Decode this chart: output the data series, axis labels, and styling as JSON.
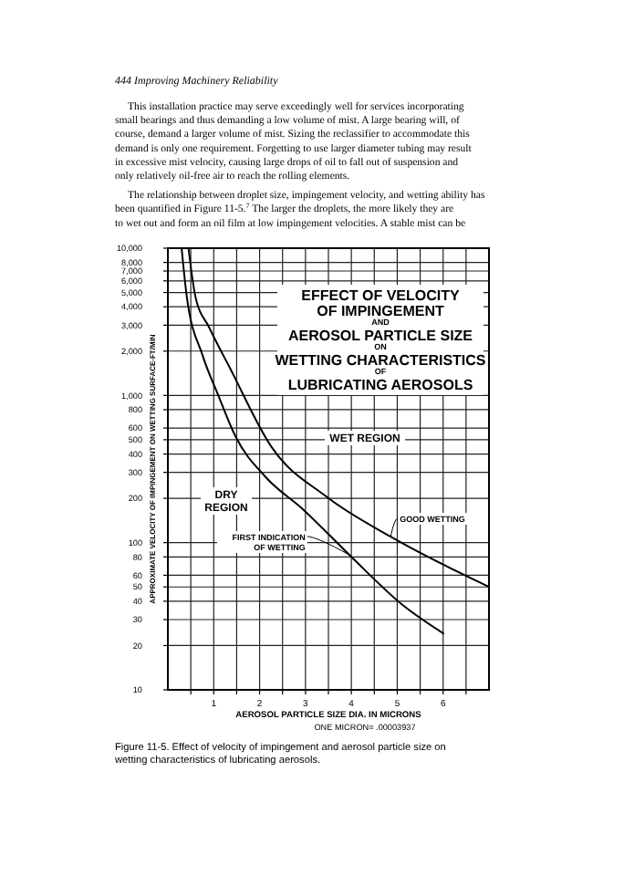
{
  "chart_data": {
    "type": "line",
    "title": "EFFECT OF VELOCITY\nOF IMPINGEMENT\nAND\nAEROSOL PARTICLE SIZE\nON\nWETTING CHARACTERISTICS\nOF\nLUBRICATING AEROSOLS",
    "xlabel": "AEROSOL PARTICLE SIZE DIA. IN MICRONS",
    "ylabel": "APPROXIMATE VELOCITY OF IMPINGEMENT ON WETTING SURFACE-FT/MIN",
    "log": "y",
    "grid": true,
    "marker": "none",
    "line_style": "solid",
    "xlim": [
      0,
      7
    ],
    "xticks": [
      {
        "value": 0.5,
        "label": null
      },
      1,
      {
        "value": 1.5,
        "label": null
      },
      2,
      {
        "value": 2.5,
        "label": null
      },
      3,
      {
        "value": 3.5,
        "label": null
      },
      4,
      {
        "value": 4.5,
        "label": null
      },
      5,
      {
        "value": 5.5,
        "label": null
      },
      6,
      {
        "value": 6.5,
        "label": null
      }
    ],
    "ylim": [
      10,
      10000
    ],
    "yticks": [
      10,
      20,
      30,
      40,
      50,
      60,
      80,
      100,
      200,
      300,
      400,
      500,
      600,
      800,
      {
        "value": 1000,
        "label": "1,000"
      },
      {
        "value": 2000,
        "label": "2,000"
      },
      {
        "value": 3000,
        "label": "3,000"
      },
      {
        "value": 4000,
        "label": "4,000"
      },
      {
        "value": 5000,
        "label": "5,000"
      },
      {
        "value": 6000,
        "label": "6,000"
      },
      {
        "value": 7000,
        "label": "7,000"
      },
      {
        "value": 8000,
        "label": "8,000"
      },
      {
        "value": 10000,
        "label": "10,000"
      }
    ],
    "series": [
      {
        "name": "FIRST INDICATION OF WETTING",
        "color": "#000000",
        "x": [
          0.3,
          0.41,
          0.76,
          1.1,
          1.47,
          2.15,
          2.94,
          4.0,
          5.15,
          6.02
        ],
        "values": [
          10000,
          4760,
          1860,
          1000,
          530,
          275,
          169,
          80,
          37,
          24
        ]
      },
      {
        "name": "GOOD WETTING",
        "color": "#000000",
        "x": [
          0.45,
          0.6,
          0.9,
          1.36,
          2.26,
          3.45,
          4.92,
          7.0
        ],
        "values": [
          10000,
          4700,
          2900,
          1520,
          446,
          206,
          107,
          50
        ]
      }
    ],
    "annotations": [
      "444    Improving Machinery Reliability",
      "This installation practice may serve exceedingly well for services incorporating small bearings and thus demanding a low volume of mist. A large bearing will, of course, demand a larger volume of mist. Sizing the reclassifier to accommodate this demand is only one requirement. Forgetting to use larger diameter tubing may result in excessive mist velocity, causing large drops of oil to fall out of suspension and only relatively oil-free air to reach the rolling elements.",
      "The relationship between droplet size, impingement velocity, and wetting ability has been quantified in Figure 11-5.$^{7}$ The larger the droplets, the more likely they are to wet out and form an oil film at low impingement velocities. A stable mist can be",
      "WET REGION",
      "DRY\nREGION",
      "ONE MICRON= .00003937",
      "Figure 11-5. Effect of velocity of impingement and aerosol particle size on wetting characteristics of lubricating aerosols."
    ]
  }
}
